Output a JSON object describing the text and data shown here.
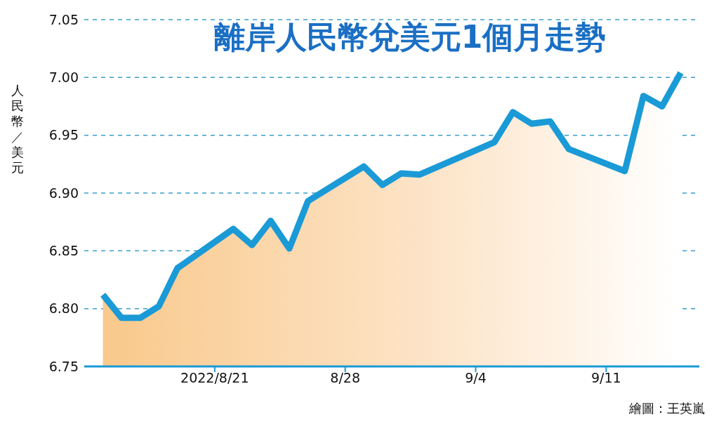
{
  "chart_data": {
    "type": "area",
    "title": "離岸人民幣兌美元1個月走勢",
    "ylabel": "人民幣／美元",
    "x": [
      "2022-08-15",
      "2022-08-16",
      "2022-08-17",
      "2022-08-18",
      "2022-08-19",
      "2022-08-22",
      "2022-08-23",
      "2022-08-24",
      "2022-08-25",
      "2022-08-26",
      "2022-08-29",
      "2022-08-30",
      "2022-08-31",
      "2022-09-01",
      "2022-09-05",
      "2022-09-06",
      "2022-09-07",
      "2022-09-08",
      "2022-09-09",
      "2022-09-12",
      "2022-09-13",
      "2022-09-14",
      "2022-09-15"
    ],
    "series": [
      {
        "color": "#1a9ad6",
        "values": [
          6.812,
          6.792,
          6.792,
          6.802,
          6.835,
          6.869,
          6.855,
          6.876,
          6.852,
          6.893,
          6.923,
          6.907,
          6.917,
          6.916,
          6.944,
          6.97,
          6.96,
          6.962,
          6.938,
          6.919,
          6.984,
          6.975,
          7.004
        ]
      }
    ],
    "xlim": [
      "2022-08-14",
      "2022-09-16"
    ],
    "xticks": [
      {
        "value": "2022-08-21",
        "label": "2022/8/21"
      },
      {
        "value": "2022-08-28",
        "label": "8/28"
      },
      {
        "value": "2022-09-04",
        "label": "9/4"
      },
      {
        "value": "2022-09-11",
        "label": "9/11"
      }
    ],
    "ylim": [
      6.75,
      7.05
    ],
    "yticks": [
      6.75,
      {
        "value": 6.8,
        "label": "6.80"
      },
      6.85,
      {
        "value": 6.9,
        "label": "6.90"
      },
      6.95,
      {
        "value": 7,
        "label": "7.00"
      },
      7.05
    ],
    "grid": "y",
    "legend": false,
    "marker": "none",
    "line_style": "solid",
    "annotations": [
      "繪圖：王英嵐"
    ]
  }
}
